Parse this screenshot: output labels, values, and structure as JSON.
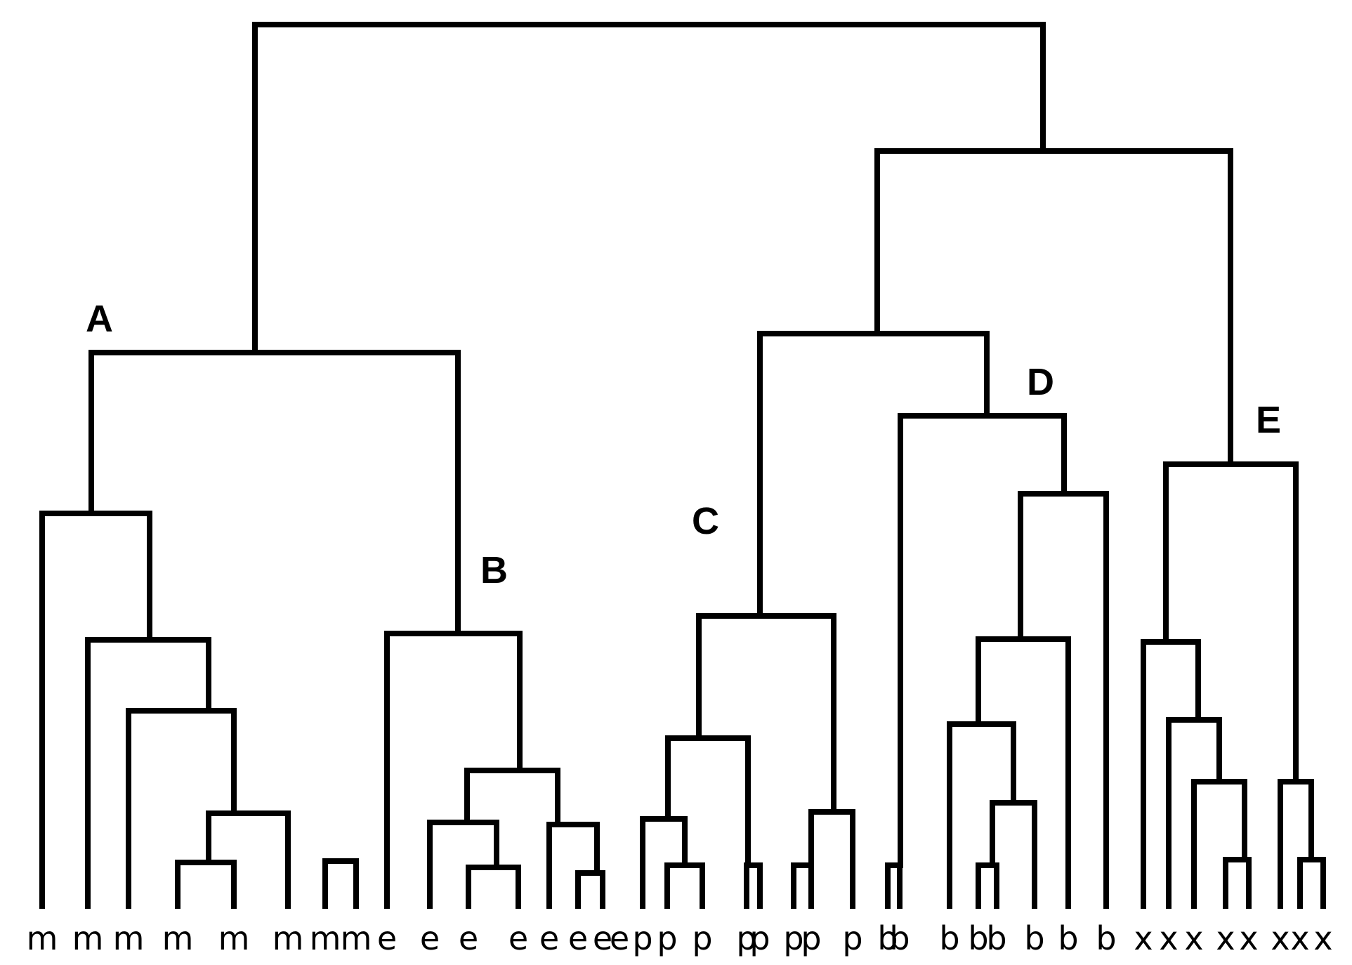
{
  "leaf_labels": [
    "m",
    "m",
    "m",
    "m",
    "m",
    "m",
    "m",
    "m",
    "e",
    "e",
    "e",
    "e",
    "e",
    "e",
    "e",
    "e",
    "p",
    "p",
    "p",
    "p",
    "p",
    "p",
    "p",
    "p",
    "b",
    "b",
    "b",
    "b",
    "b",
    "b",
    "b",
    "b",
    "x",
    "x",
    "x",
    "x",
    "x",
    "x",
    "x",
    "x"
  ],
  "cluster_labels": [
    "A",
    "B",
    "C",
    "D",
    "E"
  ],
  "line_color": "#000000"
}
